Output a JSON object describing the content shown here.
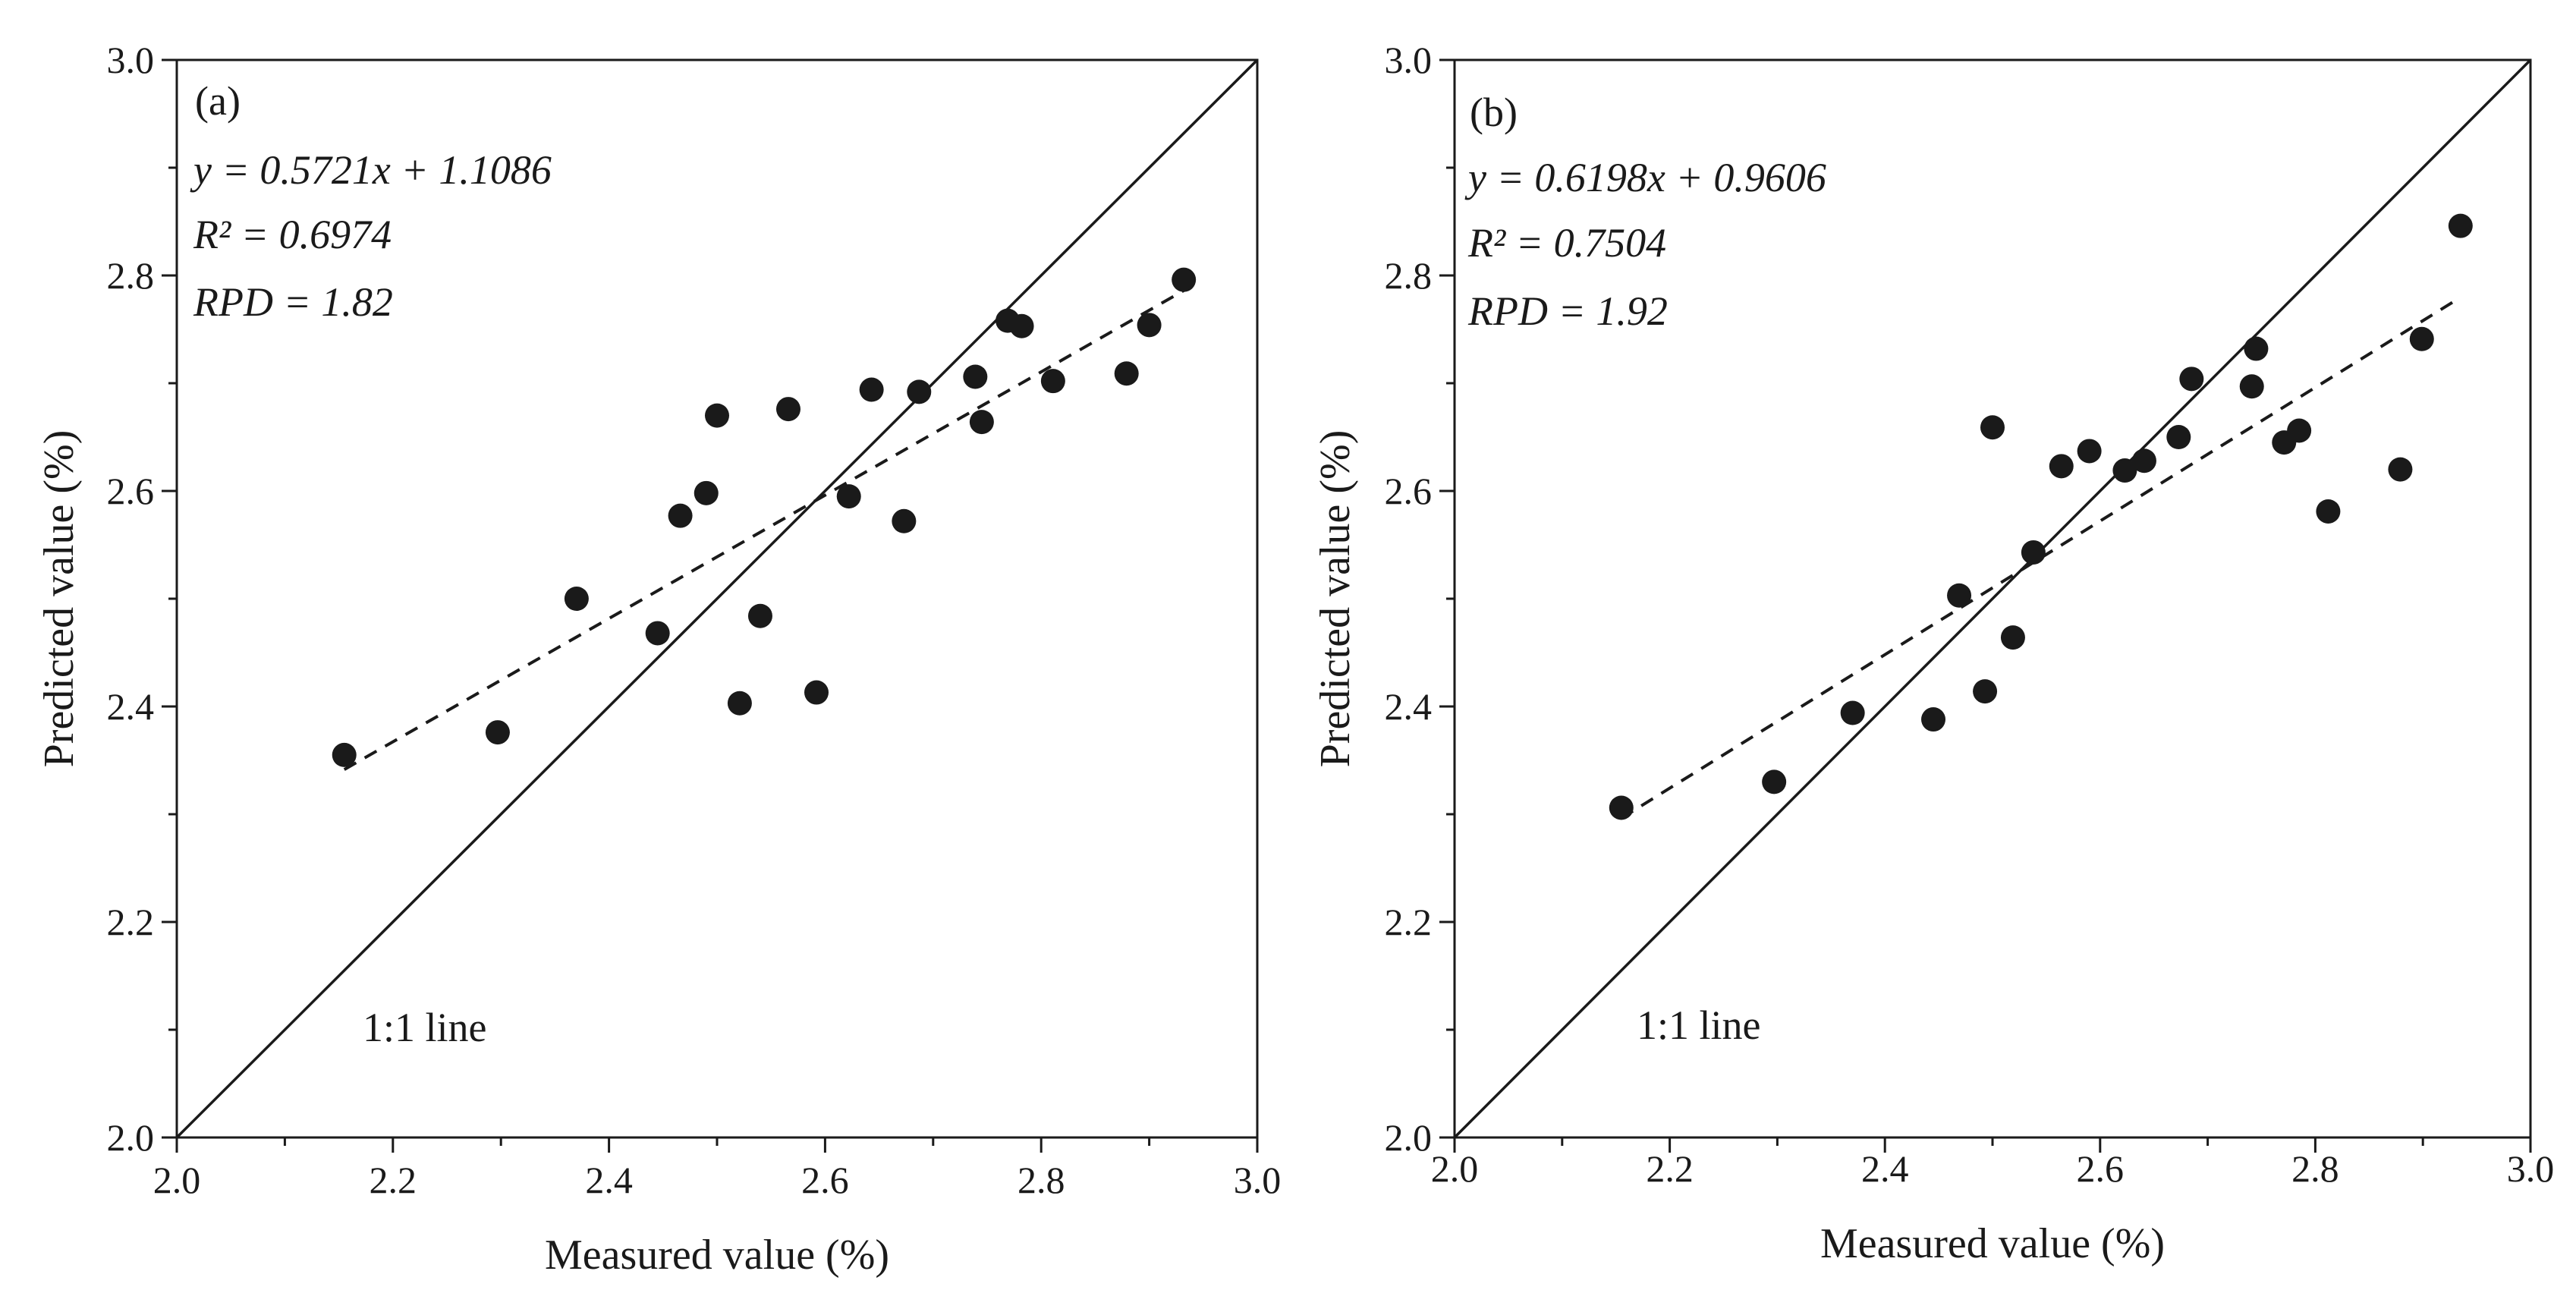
{
  "colors": {
    "ink": "#1a1a1a",
    "background": "#ffffff"
  },
  "chart_data": [
    {
      "type": "scatter",
      "panel_label": "(a)",
      "xlabel": "Measured value (%)",
      "ylabel": "Predicted value (%)",
      "xlim": [
        2.0,
        3.0
      ],
      "ylim": [
        2.0,
        3.0
      ],
      "x_ticks": [
        "2.0",
        "2.2",
        "2.4",
        "2.6",
        "2.8",
        "3.0"
      ],
      "y_ticks": [
        "2.0",
        "2.2",
        "2.4",
        "2.6",
        "2.8",
        "3.0"
      ],
      "equation": "y = 0.5721x + 1.1086",
      "r2": "R² = 0.6974",
      "rpd": "RPD = 1.82",
      "reference_line_label": "1:1 line",
      "fit": {
        "slope": 0.5721,
        "intercept": 1.1086,
        "x_range": [
          2.155,
          2.935
        ]
      },
      "points": [
        {
          "x": 2.155,
          "y": 2.355
        },
        {
          "x": 2.297,
          "y": 2.376
        },
        {
          "x": 2.37,
          "y": 2.5
        },
        {
          "x": 2.445,
          "y": 2.468
        },
        {
          "x": 2.466,
          "y": 2.577
        },
        {
          "x": 2.49,
          "y": 2.598
        },
        {
          "x": 2.5,
          "y": 2.67
        },
        {
          "x": 2.521,
          "y": 2.403
        },
        {
          "x": 2.54,
          "y": 2.484
        },
        {
          "x": 2.566,
          "y": 2.676
        },
        {
          "x": 2.592,
          "y": 2.413
        },
        {
          "x": 2.622,
          "y": 2.595
        },
        {
          "x": 2.643,
          "y": 2.694
        },
        {
          "x": 2.673,
          "y": 2.572
        },
        {
          "x": 2.687,
          "y": 2.692
        },
        {
          "x": 2.739,
          "y": 2.706
        },
        {
          "x": 2.745,
          "y": 2.664
        },
        {
          "x": 2.769,
          "y": 2.758
        },
        {
          "x": 2.782,
          "y": 2.753
        },
        {
          "x": 2.811,
          "y": 2.702
        },
        {
          "x": 2.879,
          "y": 2.709
        },
        {
          "x": 2.9,
          "y": 2.754
        },
        {
          "x": 2.932,
          "y": 2.796
        }
      ]
    },
    {
      "type": "scatter",
      "panel_label": "(b)",
      "xlabel": "Measured value (%)",
      "ylabel": "Predicted value (%)",
      "xlim": [
        2.0,
        3.0
      ],
      "ylim": [
        2.0,
        3.0
      ],
      "x_ticks": [
        "2.0",
        "2.2",
        "2.4",
        "2.6",
        "2.8",
        "3.0"
      ],
      "y_ticks": [
        "2.0",
        "2.2",
        "2.4",
        "2.6",
        "2.8",
        "3.0"
      ],
      "equation": "y = 0.6198x + 0.9606",
      "r2": "R² = 0.7504",
      "rpd": "RPD = 1.92",
      "reference_line_label": "1:1 line",
      "fit": {
        "slope": 0.6198,
        "intercept": 0.9606,
        "x_range": [
          2.155,
          2.935
        ]
      },
      "points": [
        {
          "x": 2.155,
          "y": 2.306
        },
        {
          "x": 2.297,
          "y": 2.33
        },
        {
          "x": 2.37,
          "y": 2.394
        },
        {
          "x": 2.445,
          "y": 2.388
        },
        {
          "x": 2.469,
          "y": 2.503
        },
        {
          "x": 2.493,
          "y": 2.414
        },
        {
          "x": 2.5,
          "y": 2.659
        },
        {
          "x": 2.519,
          "y": 2.464
        },
        {
          "x": 2.538,
          "y": 2.543
        },
        {
          "x": 2.564,
          "y": 2.623
        },
        {
          "x": 2.59,
          "y": 2.637
        },
        {
          "x": 2.623,
          "y": 2.619
        },
        {
          "x": 2.641,
          "y": 2.628
        },
        {
          "x": 2.673,
          "y": 2.65
        },
        {
          "x": 2.685,
          "y": 2.704
        },
        {
          "x": 2.741,
          "y": 2.697
        },
        {
          "x": 2.745,
          "y": 2.732
        },
        {
          "x": 2.771,
          "y": 2.645
        },
        {
          "x": 2.785,
          "y": 2.656
        },
        {
          "x": 2.812,
          "y": 2.581
        },
        {
          "x": 2.879,
          "y": 2.62
        },
        {
          "x": 2.899,
          "y": 2.741
        },
        {
          "x": 2.935,
          "y": 2.846
        }
      ]
    }
  ]
}
